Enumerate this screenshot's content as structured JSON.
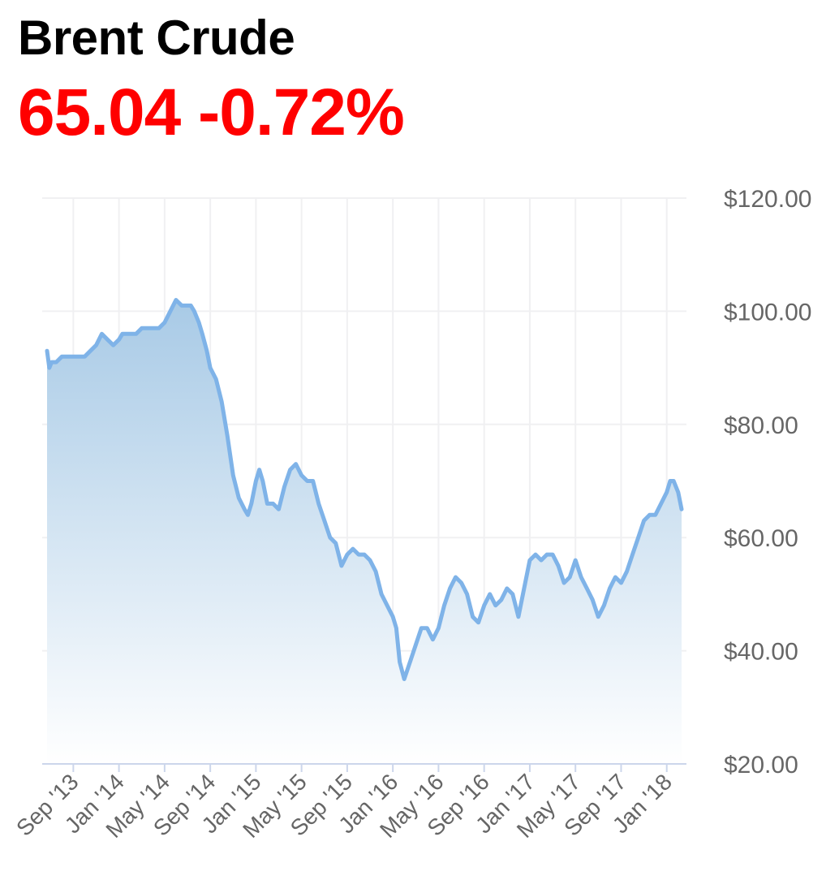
{
  "header": {
    "title": "Brent Crude",
    "price": "65.04",
    "change": "-0.72%",
    "change_color": "#ff0000"
  },
  "colors": {
    "line": "#7fb3e8",
    "fill_top": "#a8cae6",
    "fill_bottom": "#ffffff",
    "grid": "#f0f0f2",
    "axis": "#ccd6eb"
  },
  "chart_data": {
    "type": "area",
    "title": "Brent Crude",
    "ylabel": "",
    "xlabel": "",
    "ylim": [
      20,
      120
    ],
    "y_ticks": [
      "$120.00",
      "$100.00",
      "$80.00",
      "$60.00",
      "$40.00",
      "$20.00"
    ],
    "y_tick_values": [
      120,
      100,
      80,
      60,
      40,
      20
    ],
    "x_ticks": [
      "Sep '13",
      "Jan '14",
      "May '14",
      "Sep '14",
      "Jan '15",
      "May '15",
      "Sep '15",
      "Jan '16",
      "May '16",
      "Sep '16",
      "Jan '17",
      "May '17",
      "Sep '17",
      "Jan '18"
    ],
    "x_tick_months": [
      4,
      8,
      12,
      16,
      20,
      24,
      28,
      32,
      36,
      40,
      44,
      48,
      52,
      56
    ],
    "x_range_months": [
      1.7,
      57.3
    ],
    "axis_position": "right",
    "grid": true,
    "series": [
      {
        "x_months": [
          1.7,
          1.9,
          2.1,
          2.5,
          3.0,
          3.5,
          4.0,
          4.5,
          5.0,
          5.5,
          6.0,
          6.5,
          7.0,
          7.5,
          8.0,
          8.3,
          8.6,
          9.0,
          9.5,
          10.0,
          10.5,
          11.0,
          11.5,
          12.0,
          12.5,
          13.0,
          13.5,
          14.0,
          14.3,
          14.6,
          15.0,
          15.3,
          15.7,
          16.0,
          16.5,
          17.0,
          17.5,
          18.0,
          18.5,
          19.0,
          19.3,
          19.6,
          20.0,
          20.3,
          20.6,
          21.0,
          21.5,
          22.0,
          22.5,
          23.0,
          23.5,
          24.0,
          24.5,
          25.0,
          25.5,
          26.0,
          26.5,
          27.0,
          27.5,
          28.0,
          28.5,
          29.0,
          29.5,
          30.0,
          30.5,
          31.0,
          31.5,
          32.0,
          32.3,
          32.6,
          33.0,
          33.5,
          34.0,
          34.5,
          35.0,
          35.5,
          36.0,
          36.5,
          37.0,
          37.5,
          38.0,
          38.5,
          39.0,
          39.5,
          40.0,
          40.5,
          41.0,
          41.5,
          42.0,
          42.5,
          43.0,
          43.5,
          44.0,
          44.5,
          45.0,
          45.5,
          46.0,
          46.5,
          47.0,
          47.5,
          48.0,
          48.5,
          49.0,
          49.5,
          50.0,
          50.5,
          51.0,
          51.5,
          52.0,
          52.5,
          53.0,
          53.5,
          54.0,
          54.5,
          55.0,
          55.5,
          56.0,
          56.3,
          56.6,
          57.0,
          57.3
        ],
        "values": [
          93,
          90,
          91,
          91,
          92,
          92,
          92,
          92,
          92,
          93,
          94,
          96,
          95,
          94,
          95,
          96,
          96,
          96,
          96,
          97,
          97,
          97,
          97,
          98,
          100,
          102,
          101,
          101,
          101,
          100,
          98,
          96,
          93,
          90,
          88,
          84,
          78,
          71,
          67,
          65,
          64,
          66,
          70,
          72,
          70,
          66,
          66,
          65,
          69,
          72,
          73,
          71,
          70,
          70,
          66,
          63,
          60,
          59,
          55,
          57,
          58,
          57,
          57,
          56,
          54,
          50,
          48,
          46,
          44,
          38,
          35,
          38,
          41,
          44,
          44,
          42,
          44,
          48,
          51,
          53,
          52,
          50,
          46,
          45,
          48,
          50,
          48,
          49,
          51,
          50,
          46,
          51,
          56,
          57,
          56,
          57,
          57,
          55,
          52,
          53,
          56,
          53,
          51,
          49,
          46,
          48,
          51,
          53,
          52,
          54,
          57,
          60,
          63,
          64,
          64,
          66,
          68,
          70,
          70,
          68,
          65
        ]
      }
    ]
  }
}
